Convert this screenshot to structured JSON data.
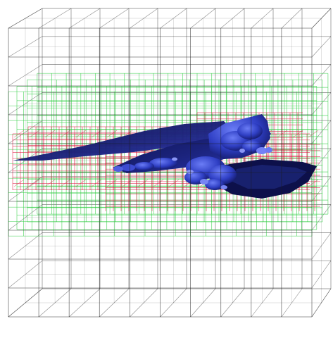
{
  "viewport": {
    "background": "#ffffff"
  },
  "grids": {
    "coarse": {
      "level": 0,
      "color": "#1a1a1a",
      "divisions": 10
    },
    "medium": {
      "level": 1,
      "color": "#2ecc40",
      "divisions": 20
    },
    "fine": {
      "level": 2,
      "color": "#e0103a",
      "divisions": 40
    }
  },
  "model": {
    "color_dark": "#0c0f4a",
    "color_mid": "#2b38b8",
    "color_light": "#5d6df0"
  }
}
